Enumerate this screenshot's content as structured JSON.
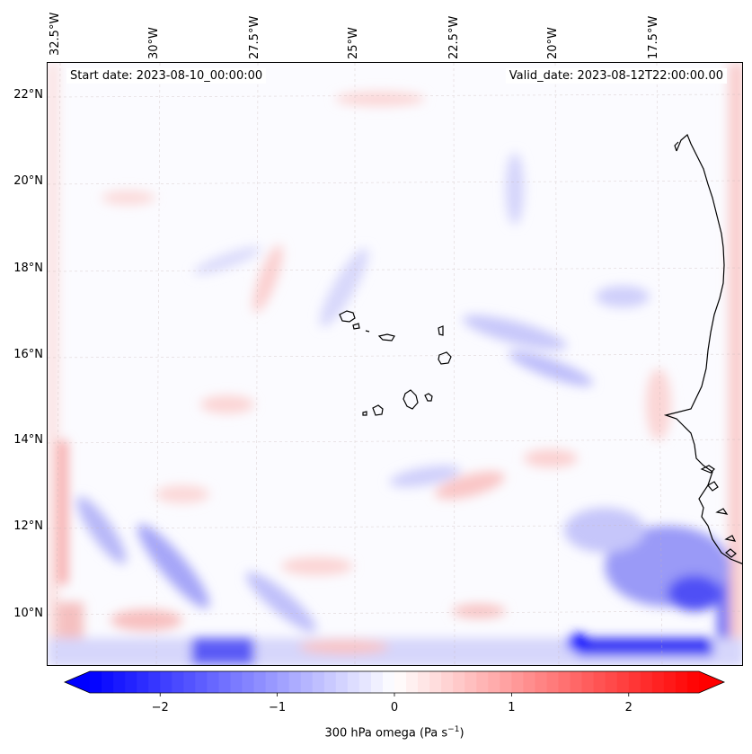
{
  "map": {
    "start_date": "Start date: 2023-08-10_00:00:00",
    "valid_date": "Valid_date: 2023-08-12T22:00:00.00",
    "lon_labels": [
      "32.5°W",
      "30°W",
      "27.5°W",
      "25°W",
      "22.5°W",
      "20°W",
      "17.5°W"
    ],
    "lat_labels": [
      "22°N",
      "20°N",
      "18°N",
      "16°N",
      "14°N",
      "12°N",
      "10°N"
    ],
    "gridline_color": "#c8b6b6",
    "coast_color": "#000000"
  },
  "colorbar": {
    "label_text": "300 hPa omega (Pa s",
    "label_sup": "−1",
    "label_close": ")",
    "ticks": [
      "−2",
      "−1",
      "0",
      "1",
      "2"
    ],
    "tick_values": [
      -2,
      -1,
      0,
      1,
      2
    ],
    "vmin": -2.6,
    "vmax": 2.6,
    "color_min": "#0000ff",
    "color_mid": "#ffffff",
    "color_max": "#ff0000"
  },
  "chart_data": {
    "type": "heatmap",
    "title": "",
    "variable": "300 hPa omega (Pa s−1)",
    "x_range_lon": [
      -33,
      -15
    ],
    "y_range_lat": [
      9,
      22.8
    ],
    "value_range": [
      -2.6,
      2.6
    ]
  }
}
